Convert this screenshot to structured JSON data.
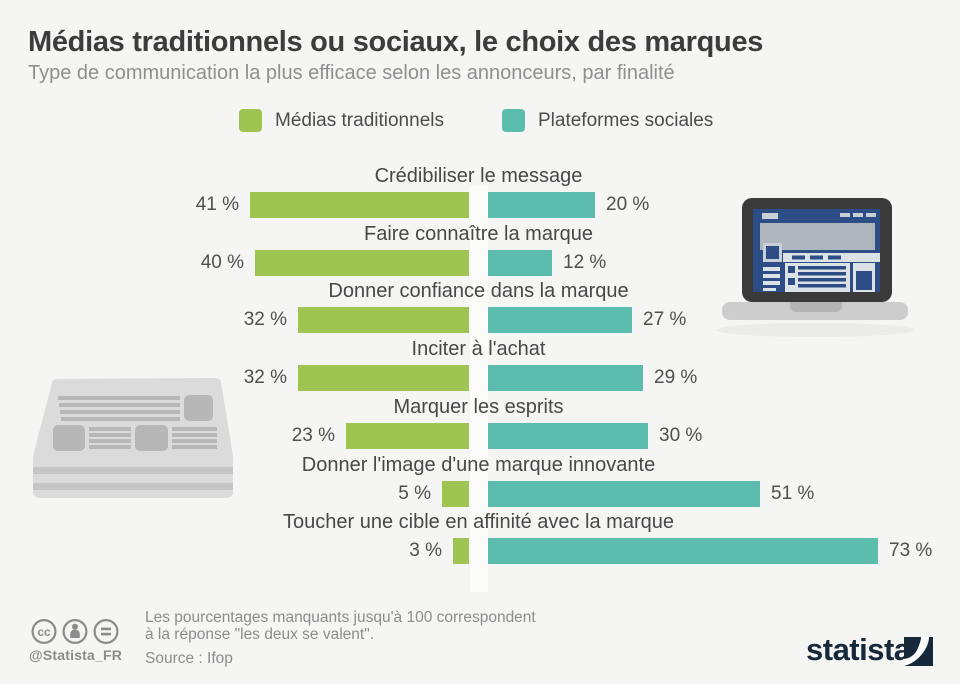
{
  "header": {
    "title": "Médias traditionnels ou sociaux, le choix des marques",
    "subtitle": "Type de communication la plus efficace selon les annonceurs, par finalité"
  },
  "legend": [
    {
      "label": "Médias traditionnels",
      "color": "#9ec551"
    },
    {
      "label": "Plateformes sociales",
      "color": "#5cbcae"
    }
  ],
  "chart_data": {
    "type": "bar",
    "orientation": "diverging-horizontal",
    "categories": [
      "Crédibiliser le message",
      "Faire connaître la marque",
      "Donner confiance dans la marque",
      "Inciter à l'achat",
      "Marquer les esprits",
      "Donner l'image d'une marque innovante",
      "Toucher une cible en affinité avec la marque"
    ],
    "series": [
      {
        "name": "Médias traditionnels",
        "side": "left",
        "color": "#9ec551",
        "values": [
          41,
          40,
          32,
          32,
          23,
          5,
          3
        ]
      },
      {
        "name": "Plateformes sociales",
        "side": "right",
        "color": "#5cbcae",
        "values": [
          20,
          12,
          27,
          29,
          30,
          51,
          73
        ]
      }
    ],
    "value_suffix": " %",
    "xlim": [
      0,
      80
    ],
    "grid": false,
    "legend_position": "top"
  },
  "illustrations": {
    "right": "laptop-social-page-illustration",
    "left": "newspaper-stack-illustration"
  },
  "footer": {
    "license_icons": [
      "cc-icon",
      "attribution-icon",
      "equals-icon"
    ],
    "handle": "@Statista_FR",
    "note_lines": [
      "Les pourcentages manquants jusqu'à 100 correspondent",
      "à la réponse \"les deux se valent\"."
    ],
    "source": "Source : Ifop",
    "brand": "statista"
  },
  "colors": {
    "background": "#f5f5f4",
    "traditional_green": "#9ec551",
    "social_teal": "#5cbcae",
    "title_text": "#3c3c3c",
    "subtitle_text": "#8f8f8f",
    "category_text": "#484848",
    "value_text": "#4f4f4f",
    "footer_text": "#8c8c8c",
    "brand_navy": "#16293b",
    "axis_band": "#fbfbfa"
  }
}
